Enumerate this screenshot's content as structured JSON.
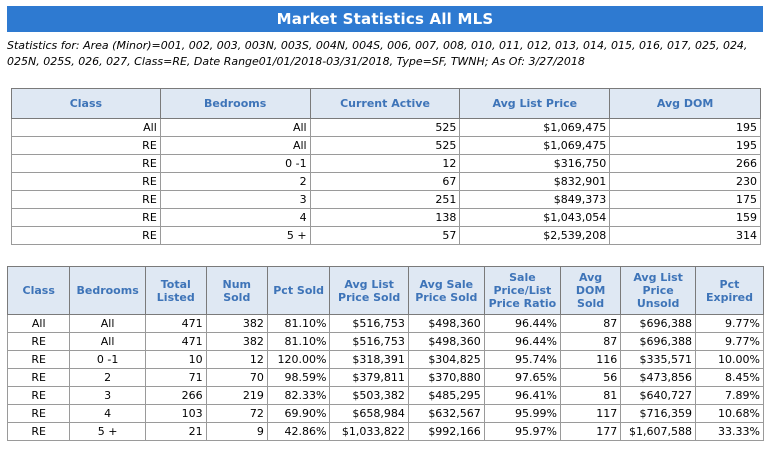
{
  "report": {
    "title": "Market Statistics All MLS",
    "criteria": "Statistics for: Area (Minor)=001, 002, 003, 003N, 003S, 004N, 004S, 006, 007, 008, 010, 011, 012, 013, 014, 015, 016, 017, 025, 024, 025N, 025S, 026, 027, Class=RE, Date Range01/01/2018-03/31/2018, Type=SF, TWNH; As Of: 3/27/2018"
  },
  "active_table": {
    "headers": [
      "Class",
      "Bedrooms",
      "Current Active",
      "Avg List Price",
      "Avg DOM"
    ],
    "rows": [
      [
        "All",
        "All",
        "525",
        "$1,069,475",
        "195"
      ],
      [
        "RE",
        "All",
        "525",
        "$1,069,475",
        "195"
      ],
      [
        "RE",
        "0 -1",
        "12",
        "$316,750",
        "266"
      ],
      [
        "RE",
        "2",
        "67",
        "$832,901",
        "230"
      ],
      [
        "RE",
        "3",
        "251",
        "$849,373",
        "175"
      ],
      [
        "RE",
        "4",
        "138",
        "$1,043,054",
        "159"
      ],
      [
        "RE",
        "5 +",
        "57",
        "$2,539,208",
        "314"
      ]
    ]
  },
  "sold_table": {
    "headers": [
      "Class",
      "Bedrooms",
      "Total Listed",
      "Num Sold",
      "Pct Sold",
      "Avg List Price Sold",
      "Avg Sale Price Sold",
      "Sale Price/List Price Ratio",
      "Avg DOM Sold",
      "Avg List Price Unsold",
      "Pct Expired"
    ],
    "rows": [
      [
        "All",
        "All",
        "471",
        "382",
        "81.10%",
        "$516,753",
        "$498,360",
        "96.44%",
        "87",
        "$696,388",
        "9.77%"
      ],
      [
        "RE",
        "All",
        "471",
        "382",
        "81.10%",
        "$516,753",
        "$498,360",
        "96.44%",
        "87",
        "$696,388",
        "9.77%"
      ],
      [
        "RE",
        "0 -1",
        "10",
        "12",
        "120.00%",
        "$318,391",
        "$304,825",
        "95.74%",
        "116",
        "$335,571",
        "10.00%"
      ],
      [
        "RE",
        "2",
        "71",
        "70",
        "98.59%",
        "$379,811",
        "$370,880",
        "97.65%",
        "56",
        "$473,856",
        "8.45%"
      ],
      [
        "RE",
        "3",
        "266",
        "219",
        "82.33%",
        "$503,382",
        "$485,295",
        "96.41%",
        "81",
        "$640,727",
        "7.89%"
      ],
      [
        "RE",
        "4",
        "103",
        "72",
        "69.90%",
        "$658,984",
        "$632,567",
        "95.99%",
        "117",
        "$716,359",
        "10.68%"
      ],
      [
        "RE",
        "5 +",
        "21",
        "9",
        "42.86%",
        "$1,033,822",
        "$992,166",
        "95.97%",
        "177",
        "$1,607,588",
        "33.33%"
      ]
    ]
  },
  "colors": {
    "title_bg": "#2e7ad1",
    "header_bg": "#dfe8f3",
    "header_text": "#3e74b8"
  }
}
